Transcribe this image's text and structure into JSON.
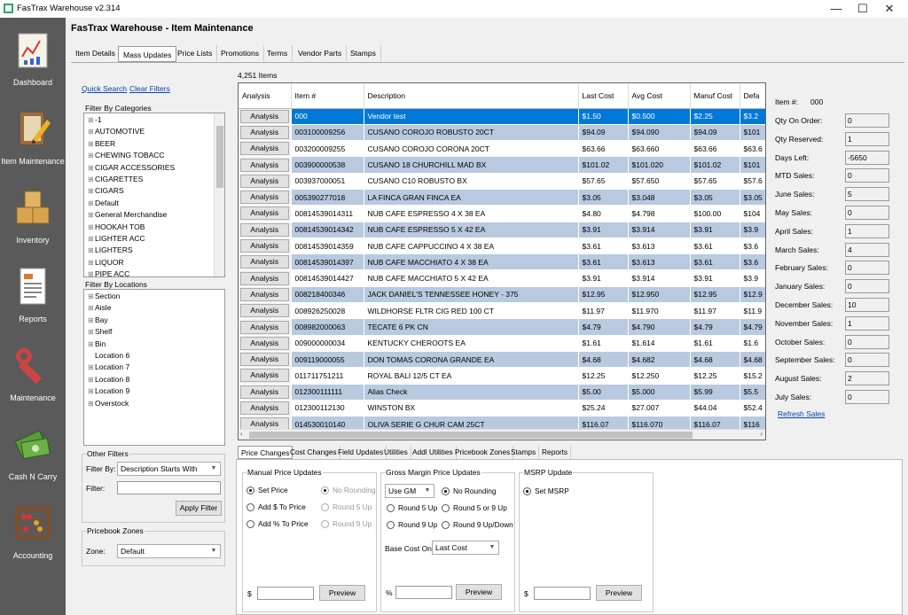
{
  "window": {
    "title": "FasTrax Warehouse v2.314",
    "min": "—",
    "max": "☐",
    "close": "✕"
  },
  "nav": [
    {
      "label": "Dashboard",
      "icon": "dashboard-chart-icon"
    },
    {
      "label": "Item Maintenance",
      "icon": "notebook-pencil-icon"
    },
    {
      "label": "Inventory",
      "icon": "boxes-icon"
    },
    {
      "label": "Reports",
      "icon": "report-document-icon"
    },
    {
      "label": "Maintenance",
      "icon": "wrench-icon"
    },
    {
      "label": "Cash N Carry",
      "icon": "cash-icon"
    },
    {
      "label": "Accounting",
      "icon": "abacus-icon"
    }
  ],
  "page": {
    "title": "FasTrax Warehouse - Item Maintenance"
  },
  "tabs": [
    "Item Details",
    "Mass Updates",
    "Price Lists",
    "Promotions",
    "Terms",
    "Vendor Parts",
    "Stamps"
  ],
  "left": {
    "quick_search": "Quick Search",
    "clear_filters": "Clear Filters",
    "categories_title": "Filter By Categories",
    "categories": [
      "-1",
      "AUTOMOTIVE",
      "BEER",
      "CHEWING TOBACC",
      "CIGAR ACCESSORIES",
      "CIGARETTES",
      "CIGARS",
      "Default",
      "General Merchandise",
      "HOOKAH TOB",
      "LIGHTER ACC",
      "LIGHTERS",
      "LIQUOR",
      "PIPE ACC"
    ],
    "locations_title": "Filter By Locations",
    "locations": [
      {
        "label": "Section",
        "pm": "⊞"
      },
      {
        "label": "Aisle",
        "pm": "⊞"
      },
      {
        "label": "Bay",
        "pm": "⊞"
      },
      {
        "label": "Shelf",
        "pm": "⊞"
      },
      {
        "label": "Bin",
        "pm": "⊞"
      },
      {
        "label": "Location 6",
        "pm": ""
      },
      {
        "label": "Location 7",
        "pm": "⊞"
      },
      {
        "label": "Location 8",
        "pm": "⊞"
      },
      {
        "label": "Location 9",
        "pm": "⊞"
      },
      {
        "label": "Overstock",
        "pm": "⊞"
      }
    ],
    "other_filters_title": "Other Filters",
    "filter_by_label": "Filter By:",
    "filter_by_value": "Description Starts With",
    "filter_label": "Filter:",
    "filter_value": "",
    "apply_filter": "Apply Filter",
    "pricebook_title": "Pricebook Zones",
    "zone_label": "Zone:",
    "zone_value": "Default"
  },
  "grid": {
    "count": "4,251 Items",
    "columns": [
      "Analysis",
      "Item #",
      "Description",
      "Last Cost",
      "Avg Cost",
      "Manuf Cost",
      "Defa"
    ],
    "button": "Analysis",
    "rows": [
      [
        "000",
        "Vendor test",
        "$1.50",
        "$0.500",
        "$2.25",
        "$3.2"
      ],
      [
        "003100009256",
        "CUSANO COROJO ROBUSTO 20CT",
        "$94.09",
        "$94.090",
        "$94.09",
        "$101"
      ],
      [
        "003200009255",
        "CUSANO COROJO CORONA 20CT",
        "$63.66",
        "$63.660",
        "$63.66",
        "$63.6"
      ],
      [
        "003900000538",
        "CUSANO 18 CHURCHILL MAD BX",
        "$101.02",
        "$101.020",
        "$101.02",
        "$101"
      ],
      [
        "003937000051",
        "CUSANO C10 ROBUSTO BX",
        "$57.65",
        "$57.650",
        "$57.65",
        "$57.6"
      ],
      [
        "005390277018",
        "LA FINCA GRAN FINCA EA",
        "$3.05",
        "$3.048",
        "$3.05",
        "$3.05"
      ],
      [
        "00814539014311",
        "NUB CAFE ESPRESSO 4 X 38 EA",
        "$4.80",
        "$4.798",
        "$100.00",
        "$104"
      ],
      [
        "00814539014342",
        "NUB CAFE ESPRESSO 5 X 42 EA",
        "$3.91",
        "$3.914",
        "$3.91",
        "$3.9"
      ],
      [
        "00814539014359",
        "NUB CAFE CAPPUCCINO 4 X 38 EA",
        "$3.61",
        "$3.613",
        "$3.61",
        "$3.6"
      ],
      [
        "00814539014397",
        "NUB CAFE MACCHIATO 4 X 38 EA",
        "$3.61",
        "$3.613",
        "$3.61",
        "$3.6"
      ],
      [
        "00814539014427",
        "NUB CAFE MACCHIATO 5 X 42 EA",
        "$3.91",
        "$3.914",
        "$3.91",
        "$3.9"
      ],
      [
        "008218400346",
        "JACK DANIEL'S TENNESSEE HONEY - 375",
        "$12.95",
        "$12.950",
        "$12.95",
        "$12.9"
      ],
      [
        "008926250028",
        "WILDHORSE FLTR CIG RED 100 CT",
        "$11.97",
        "$11.970",
        "$11.97",
        "$11.9"
      ],
      [
        "008982000063",
        "TECATE 6 PK CN",
        "$4.79",
        "$4.790",
        "$4.79",
        "$4.79"
      ],
      [
        "009000000034",
        "KENTUCKY CHEROOTS EA",
        "$1.61",
        "$1.614",
        "$1.61",
        "$1.6"
      ],
      [
        "009119000055",
        "DON TOMAS CORONA GRANDE EA",
        "$4.68",
        "$4.682",
        "$4.68",
        "$4.68"
      ],
      [
        "011711751211",
        "ROYAL BALI 12/5 CT EA",
        "$12.25",
        "$12.250",
        "$12.25",
        "$15.2"
      ],
      [
        "012300111111",
        "Alias Check",
        "$5.00",
        "$5.000",
        "$5.99",
        "$5.5"
      ],
      [
        "012300112130",
        "WINSTON BX",
        "$25.24",
        "$27.007",
        "$44.04",
        "$52.4"
      ],
      [
        "014530010140",
        "OLIVA SERIE G CHUR CAM 25CT",
        "$116.07",
        "$116.070",
        "$116.07",
        "$116"
      ]
    ]
  },
  "stats": {
    "item_label": "Item #:",
    "item_value": "000",
    "rows": [
      [
        "Qty On Order:",
        "0"
      ],
      [
        "Qty Reserved:",
        "1"
      ],
      [
        "Days Left:",
        "-5650"
      ],
      [
        "MTD Sales:",
        "0"
      ],
      [
        "June Sales:",
        "5"
      ],
      [
        "May Sales:",
        "0"
      ],
      [
        "April Sales:",
        "1"
      ],
      [
        "March Sales:",
        "4"
      ],
      [
        "February Sales:",
        "0"
      ],
      [
        "January Sales:",
        "0"
      ],
      [
        "December Sales:",
        "10"
      ],
      [
        "November Sales:",
        "1"
      ],
      [
        "October Sales:",
        "0"
      ],
      [
        "September Sales:",
        "0"
      ],
      [
        "August Sales:",
        "2"
      ],
      [
        "July Sales:",
        "0"
      ]
    ],
    "refresh": "Refresh Sales"
  },
  "bottom_tabs": [
    "Price Changes",
    "Cost Changes",
    "Field Updates",
    "Utilities",
    "Addl Utilities",
    "Pricebook Zones",
    "Stamps",
    "Reports"
  ],
  "manual": {
    "title": "Manual Price Updates",
    "r1": "Set Price",
    "r2": "Add $ To Price",
    "r3": "Add % To Price",
    "n1": "No Rounding",
    "n2": "Round 5 Up",
    "n3": "Round 9 Up",
    "prefix": "$",
    "preview": "Preview"
  },
  "gm": {
    "title": "Gross Margin Price Updates",
    "use": "Use GM",
    "n1": "No Rounding",
    "r1": "Round 5 Up",
    "r2": "Round 5 or 9 Up",
    "r3": "Round 9 Up",
    "r4": "Round 9 Up/Down",
    "base_label": "Base Cost On:",
    "base_value": "Last Cost",
    "prefix": "%",
    "preview": "Preview"
  },
  "msrp": {
    "title": "MSRP Update",
    "r1": "Set MSRP",
    "prefix": "$",
    "preview": "Preview"
  }
}
